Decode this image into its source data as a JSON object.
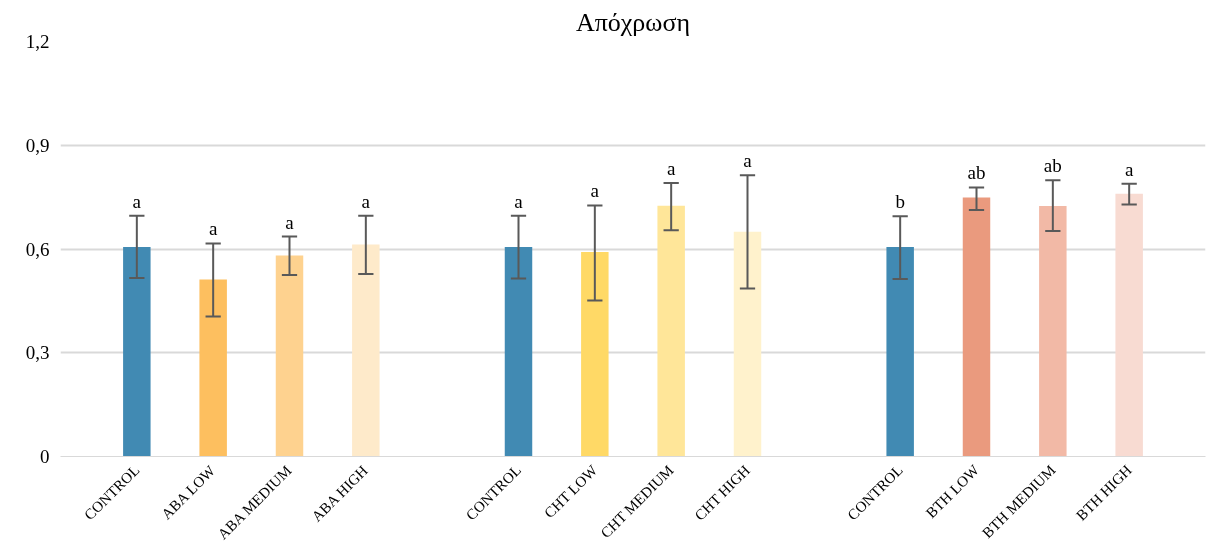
{
  "chart_data": {
    "type": "bar",
    "title": "Απόχρωση",
    "categories": [
      "CONTROL",
      "ABA LOW",
      "ABA MEDIUM",
      "ABA HIGH",
      null,
      "CONTROL",
      "CHT LOW",
      "CHT MEDIUM",
      "CHT HIGH",
      null,
      "CONTROL",
      "BTH LOW",
      "BTH MEDIUM",
      "BTH HIGH"
    ],
    "values": [
      0.606,
      0.512,
      0.581,
      0.613,
      null,
      0.606,
      0.591,
      0.725,
      0.65,
      null,
      0.606,
      0.749,
      0.724,
      0.76
    ],
    "colors": [
      "#418ab3",
      "#fdbf5f",
      "#fed28f",
      "#feeaca",
      "#ffffff",
      "#418ab3",
      "#ffd966",
      "#ffe699",
      "#fff2cc",
      "#ffffff",
      "#418ab3",
      "#ea9a7e",
      "#f2b9a6",
      "#f8dbd2"
    ],
    "errors": [
      [
        0.516,
        0.696
      ],
      [
        0.405,
        0.616
      ],
      [
        0.525,
        0.636
      ],
      [
        0.528,
        0.696
      ],
      null,
      [
        0.515,
        0.696
      ],
      [
        0.451,
        0.726
      ],
      [
        0.654,
        0.791
      ],
      [
        0.486,
        0.813
      ],
      null,
      [
        0.513,
        0.695
      ],
      [
        0.713,
        0.778
      ],
      [
        0.652,
        0.799
      ],
      [
        0.729,
        0.789
      ]
    ],
    "value_labels": [
      "a",
      "a",
      "a",
      "a",
      null,
      "a",
      "a",
      "a",
      "a",
      null,
      "b",
      "ab",
      "ab",
      "a"
    ],
    "ylim": [
      0,
      1.2
    ],
    "yticks": [
      0,
      {
        "value": 0.3,
        "label": "0,3"
      },
      {
        "value": 0.6,
        "label": "0,6"
      },
      {
        "value": 0.9,
        "label": "0,9"
      },
      {
        "value": 1.2,
        "label": "1,2"
      }
    ],
    "grid": "y"
  }
}
